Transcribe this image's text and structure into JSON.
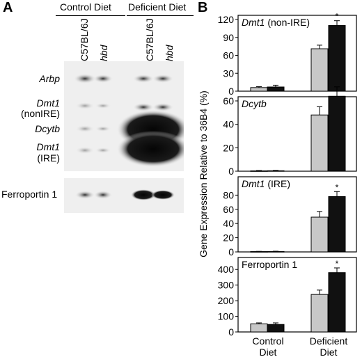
{
  "panel_a": {
    "letter": "A",
    "groups": [
      "Control Diet",
      "Deficient Diet"
    ],
    "lanes": [
      {
        "text": "C57BL/6J",
        "italic": false
      },
      {
        "text": "hbd",
        "italic": true
      },
      {
        "text": "C57BL/6J",
        "italic": false
      },
      {
        "text": "hbd",
        "italic": true
      }
    ],
    "band_labels": {
      "arbp": "Arbp",
      "dmt1_a": "Dmt1",
      "dmt1_a_sub": "(nonIRE)",
      "dcytb": "Dcytb",
      "dmt1_b": "Dmt1",
      "dmt1_b_sub": "(IRE)",
      "fpn": "Ferroportin 1"
    }
  },
  "panel_b": {
    "letter": "B",
    "ylabel": "Gene Expression Relative to 36B4 (%)",
    "x_groups": [
      [
        "Control",
        "Diet"
      ],
      [
        "Deficient",
        "Diet"
      ]
    ],
    "colors": {
      "c57": "#c8c8c8",
      "hbd": "#111111"
    }
  },
  "chart_data": [
    {
      "type": "bar",
      "title": "Dmt1",
      "title_suffix": " (non-IRE)",
      "title_italic": true,
      "categories": [
        "Control Diet",
        "Deficient Diet"
      ],
      "series": [
        {
          "values": [
            6,
            71
          ],
          "errors": [
            1.5,
            6
          ]
        },
        {
          "values": [
            7,
            110
          ],
          "errors": [
            3,
            8
          ]
        }
      ],
      "ylim": [
        0,
        120
      ],
      "yticks": [
        "0",
        "30",
        "60",
        "90",
        "120"
      ],
      "sig": [
        false,
        true
      ],
      "sig_mark": "*"
    },
    {
      "type": "bar",
      "title": "Dcytb",
      "title_suffix": "",
      "title_italic": true,
      "categories": [
        "Control Diet",
        "Deficient Diet"
      ],
      "series": [
        {
          "values": [
            0.3,
            48
          ],
          "errors": [
            0.3,
            7
          ]
        },
        {
          "values": [
            0.4,
            64
          ],
          "errors": [
            0.3,
            8
          ]
        }
      ],
      "ylim": [
        0,
        60
      ],
      "yticks": [
        "0",
        "20",
        "40",
        "60"
      ],
      "sig": [
        false,
        false
      ],
      "sig_mark": "*"
    },
    {
      "type": "bar",
      "title": "Dmt1",
      "title_suffix": " (IRE)",
      "title_italic": true,
      "categories": [
        "Control Diet",
        "Deficient Diet"
      ],
      "series": [
        {
          "values": [
            0.5,
            49
          ],
          "errors": [
            0.3,
            8
          ]
        },
        {
          "values": [
            0.6,
            78
          ],
          "errors": [
            0.4,
            7
          ]
        }
      ],
      "ylim": [
        0,
        100
      ],
      "yticks": [
        "0",
        "20",
        "40",
        "60",
        "80"
      ],
      "sig": [
        false,
        true
      ],
      "sig_mark": "*"
    },
    {
      "type": "bar",
      "title": "Ferroportin 1",
      "title_suffix": "",
      "title_italic": false,
      "categories": [
        "Control Diet",
        "Deficient Diet"
      ],
      "series": [
        {
          "values": [
            52,
            240
          ],
          "errors": [
            6,
            28
          ]
        },
        {
          "values": [
            48,
            380
          ],
          "errors": [
            10,
            30
          ]
        }
      ],
      "ylim": [
        0,
        450
      ],
      "yticks": [
        "0",
        "100",
        "200",
        "300",
        "400"
      ],
      "sig": [
        false,
        true
      ],
      "sig_mark": "*"
    }
  ]
}
